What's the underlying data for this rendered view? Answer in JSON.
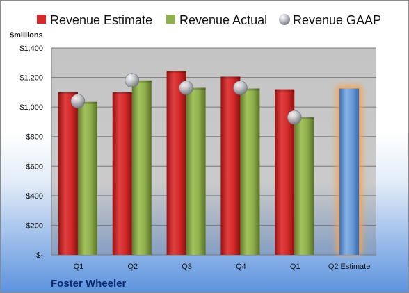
{
  "chart_data": {
    "type": "bar",
    "categories": [
      "Q1",
      "Q2",
      "Q3",
      "Q4",
      "Q1",
      "Q2 Estimate"
    ],
    "series": [
      {
        "name": "Revenue Estimate",
        "values": [
          1100,
          1100,
          1245,
          1205,
          1120,
          null
        ],
        "color": "#d42a2a"
      },
      {
        "name": "Revenue Actual",
        "values": [
          1035,
          1180,
          1130,
          1125,
          930,
          null
        ],
        "color": "#8fb04c"
      },
      {
        "name": "Revenue GAAP",
        "values": [
          1040,
          1180,
          1130,
          1130,
          930,
          null
        ],
        "color": "#b8bcc4"
      }
    ],
    "projection": {
      "category": "Q2 Estimate",
      "value": 1125,
      "color": "#6a9bd8",
      "glow": "#f2a553"
    },
    "ylabel": "$millions",
    "ylim": [
      0,
      1400
    ],
    "yticks": [
      {
        "value": 0,
        "label": "$-"
      },
      {
        "value": 200,
        "label": "$200"
      },
      {
        "value": 400,
        "label": "$400"
      },
      {
        "value": 600,
        "label": "$600"
      },
      {
        "value": 800,
        "label": "$800"
      },
      {
        "value": 1000,
        "label": "$1,000"
      },
      {
        "value": 1200,
        "label": "$1,200"
      },
      {
        "value": 1400,
        "label": "$1,400"
      }
    ],
    "grid": true,
    "legend_position": "top",
    "company": "Foster Wheeler"
  }
}
